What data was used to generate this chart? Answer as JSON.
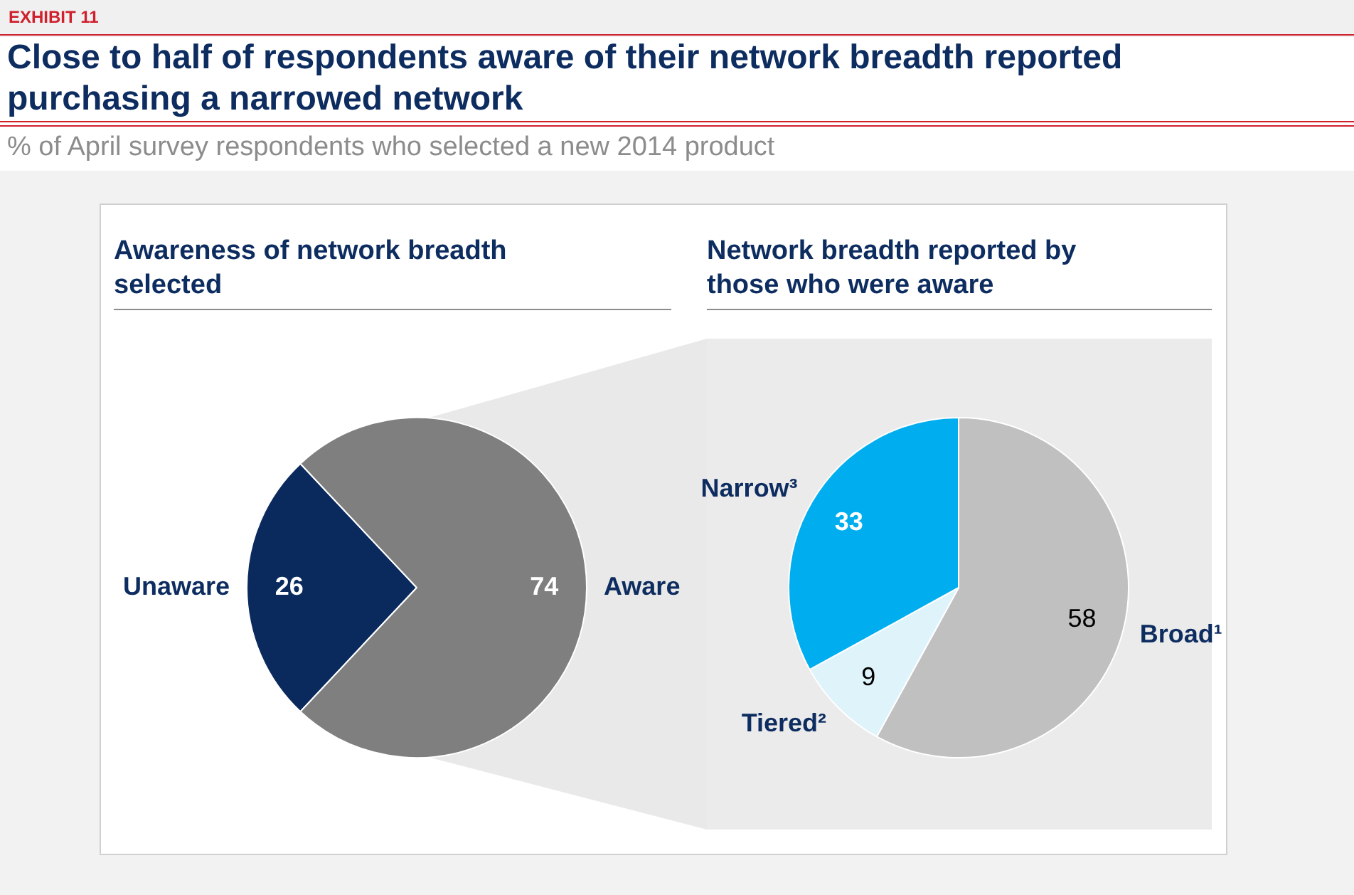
{
  "chart_data": [
    {
      "type": "pie",
      "title": "Awareness of network breadth selected",
      "categories": [
        "Unaware",
        "Aware"
      ],
      "values": [
        26,
        74
      ],
      "colors": [
        "#0a2a5e",
        "#7f7f7f"
      ],
      "data_labels": true,
      "annotations": [
        "EXHIBIT 11",
        "Close to half of respondents aware of their network breadth reported purchasing a narrowed network",
        "% of April survey respondents who selected a new 2014 product"
      ]
    },
    {
      "type": "pie",
      "title": "Network breadth reported by those who were aware",
      "categories": [
        "Broad¹",
        "Tiered²",
        "Narrow³"
      ],
      "values": [
        58,
        9,
        33
      ],
      "colors": [
        "#c0c0c0",
        "#dff3fb",
        "#00aeef"
      ],
      "data_labels": true
    }
  ]
}
